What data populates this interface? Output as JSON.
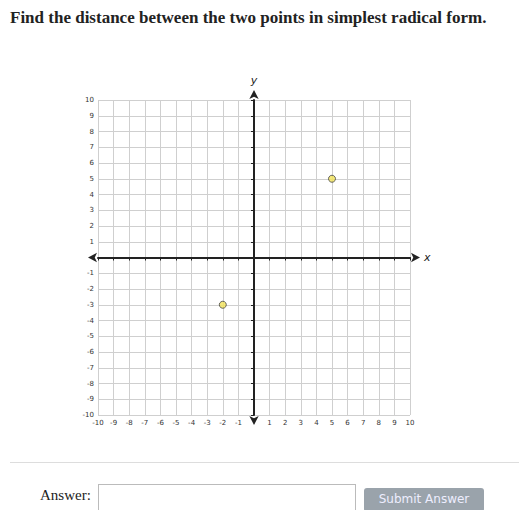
{
  "question": "Find the distance between the two points in simplest radical form.",
  "answer_label": "Answer:",
  "button": "Submit Answer",
  "chart_data": {
    "type": "scatter",
    "x_label": "x",
    "y_label": "y",
    "x": [
      5,
      -2
    ],
    "values": [
      5,
      -3
    ],
    "color": "#f3e45a",
    "marker": "circle",
    "xlim": [
      -10,
      10
    ],
    "ylim": [
      -10,
      10
    ],
    "xticks": [
      -10,
      -9,
      -8,
      -7,
      -6,
      -5,
      -4,
      -3,
      -2,
      -1,
      1,
      2,
      3,
      4,
      5,
      6,
      7,
      8,
      9,
      10
    ],
    "yticks": [
      -10,
      -9,
      -8,
      -7,
      -6,
      -5,
      -4,
      -3,
      -2,
      -1,
      1,
      2,
      3,
      4,
      5,
      6,
      7,
      8,
      9,
      10
    ],
    "grid": true
  }
}
